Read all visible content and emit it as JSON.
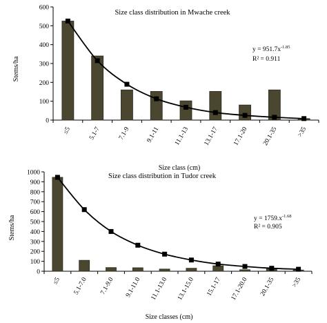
{
  "chart_data": [
    {
      "type": "bar",
      "title": "Size class distribution in Mwache creek",
      "xlabel": "Size class (cm)",
      "ylabel": "Stems/ha",
      "ylim": [
        0,
        600
      ],
      "yticks": [
        0,
        100,
        200,
        300,
        400,
        500,
        600
      ],
      "categories": [
        "≤5",
        "5.1-7",
        "7.1-9",
        "9.1-11",
        "11.1-13",
        "13.1-17",
        "17.1-20",
        "20.1-35",
        ">35"
      ],
      "series": [
        {
          "type": "bar",
          "values": [
            525,
            340,
            160,
            152,
            102,
            152,
            80,
            160,
            8
          ]
        },
        {
          "type": "line",
          "values": [
            525,
            315,
            190,
            113,
            68,
            40,
            25,
            15,
            8
          ]
        }
      ],
      "annotation": {
        "equation": "y = 951.7x",
        "exponent": "-1.85",
        "r2": "R² = 0.911"
      }
    },
    {
      "type": "bar",
      "title": "Size class distribution in Tudor creek",
      "xlabel": "Size classes (cm)",
      "ylabel": "Stems/ha",
      "ylim": [
        0,
        1000
      ],
      "yticks": [
        0,
        100,
        200,
        300,
        400,
        500,
        600,
        700,
        800,
        900,
        1000
      ],
      "categories": [
        "≤5",
        "5.1-7.0",
        "7.1-9.0",
        "9.1-11.0",
        "11.1-13.0",
        "13.1-15.0",
        "15.1-17",
        "17.1-20.0",
        "20.1-35",
        ">35"
      ],
      "series": [
        {
          "type": "bar",
          "values": [
            945,
            110,
            37,
            35,
            22,
            30,
            55,
            15,
            28,
            12
          ]
        },
        {
          "type": "line",
          "values": [
            945,
            620,
            400,
            262,
            172,
            113,
            72,
            48,
            30,
            20
          ]
        }
      ],
      "annotation": {
        "equation": "y = 1759.x",
        "exponent": "-1.68",
        "r2": "R² = 0.905"
      }
    }
  ]
}
